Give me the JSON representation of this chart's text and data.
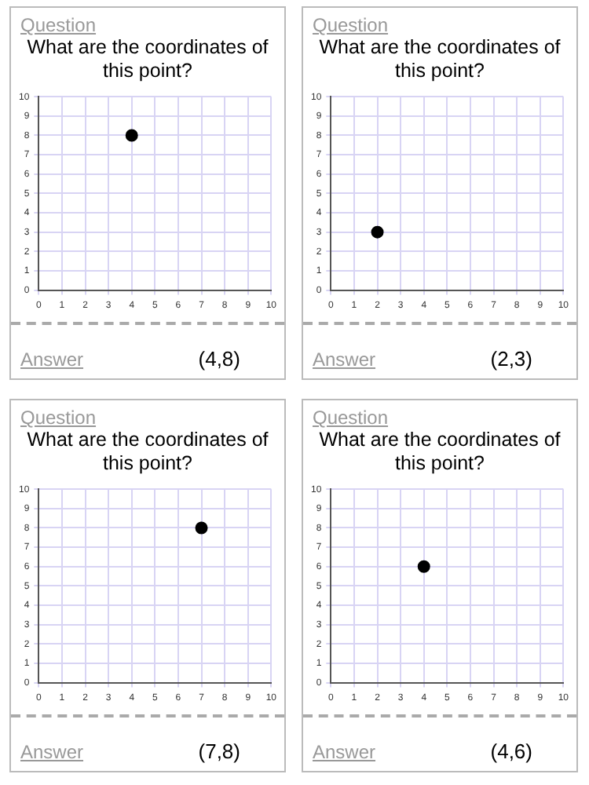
{
  "chart_data": [
    {
      "type": "scatter",
      "title": "What are the coordinates of this point?",
      "x": [
        4
      ],
      "values": [
        8
      ],
      "color": "#000000",
      "marker": "circle",
      "xlim": [
        0,
        10
      ],
      "ylim": [
        0,
        10
      ],
      "xticks": [
        0,
        1,
        2,
        3,
        4,
        5,
        6,
        7,
        8,
        9,
        10
      ],
      "yticks": [
        0,
        1,
        2,
        3,
        4,
        5,
        6,
        7,
        8,
        9,
        10
      ],
      "grid": true,
      "annotations": [
        "Question",
        "Answer",
        "(4,8)"
      ]
    },
    {
      "type": "scatter",
      "title": "What are the coordinates of this point?",
      "x": [
        2
      ],
      "values": [
        3
      ],
      "color": "#000000",
      "marker": "circle",
      "xlim": [
        0,
        10
      ],
      "ylim": [
        0,
        10
      ],
      "xticks": [
        0,
        1,
        2,
        3,
        4,
        5,
        6,
        7,
        8,
        9,
        10
      ],
      "yticks": [
        0,
        1,
        2,
        3,
        4,
        5,
        6,
        7,
        8,
        9,
        10
      ],
      "grid": true,
      "annotations": [
        "Question",
        "Answer",
        "(2,3)"
      ]
    },
    {
      "type": "scatter",
      "title": "What are the coordinates of this point?",
      "x": [
        7
      ],
      "values": [
        8
      ],
      "color": "#000000",
      "marker": "circle",
      "xlim": [
        0,
        10
      ],
      "ylim": [
        0,
        10
      ],
      "xticks": [
        0,
        1,
        2,
        3,
        4,
        5,
        6,
        7,
        8,
        9,
        10
      ],
      "yticks": [
        0,
        1,
        2,
        3,
        4,
        5,
        6,
        7,
        8,
        9,
        10
      ],
      "grid": true,
      "annotations": [
        "Question",
        "Answer",
        "(7,8)"
      ]
    },
    {
      "type": "scatter",
      "title": "What are the coordinates of this point?",
      "x": [
        4
      ],
      "values": [
        6
      ],
      "color": "#000000",
      "marker": "circle",
      "xlim": [
        0,
        10
      ],
      "ylim": [
        0,
        10
      ],
      "xticks": [
        0,
        1,
        2,
        3,
        4,
        5,
        6,
        7,
        8,
        9,
        10
      ],
      "yticks": [
        0,
        1,
        2,
        3,
        4,
        5,
        6,
        7,
        8,
        9,
        10
      ],
      "grid": true,
      "annotations": [
        "Question",
        "Answer",
        "(4,6)"
      ]
    }
  ]
}
